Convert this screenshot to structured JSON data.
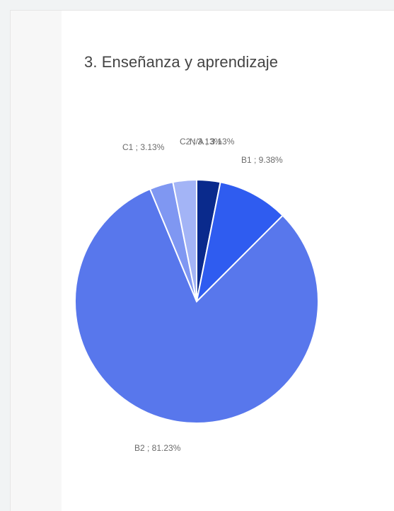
{
  "chart_data": {
    "type": "pie",
    "title": "3. Enseñanza y aprendizaje",
    "slices": [
      {
        "name": "C2",
        "label": "C2 ; 3.13%",
        "value": 3.13,
        "color": "#0a2a8c"
      },
      {
        "name": "B1",
        "label": "B1 ; 9.38%",
        "value": 9.38,
        "color": "#2f5cf0"
      },
      {
        "name": "B2",
        "label": "B2 ; 81.23%",
        "value": 81.23,
        "color": "#5877ec"
      },
      {
        "name": "C1",
        "label": "C1 ; 3.13%",
        "value": 3.13,
        "color": "#7f97f2"
      },
      {
        "name": "N/A",
        "label": "N/A ; 3.13%",
        "value": 3.13,
        "color": "#a3b4f6"
      }
    ]
  }
}
